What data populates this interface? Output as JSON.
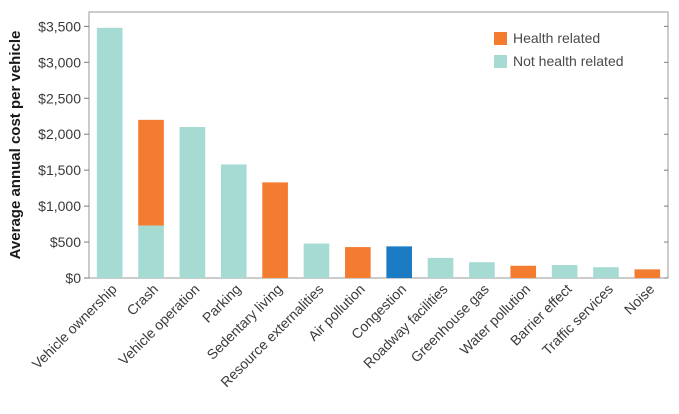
{
  "chart_data": {
    "type": "bar",
    "stacked": true,
    "ylabel": "Average annual cost per vehicle",
    "xlabel": "",
    "title": "",
    "ylim": [
      0,
      3700
    ],
    "yticks": [
      0,
      500,
      1000,
      1500,
      2000,
      2500,
      3000,
      3500
    ],
    "ytick_labels": [
      "$0",
      "$500",
      "$1,000",
      "$1,500",
      "$2,000",
      "$2,500",
      "$3,000",
      "$3,500"
    ],
    "grid": false,
    "legend_position": "top-right",
    "categories": [
      "Vehicle ownership",
      "Crash",
      "Vehicle operation",
      "Parking",
      "Sedentary living",
      "Resource externalities",
      "Air pollution",
      "Congestion",
      "Roadway facilities",
      "Greenhouse gas",
      "Water pollution",
      "Barrier effect",
      "Traffic services",
      "Noise"
    ],
    "series": [
      {
        "name": "Not health related",
        "color": "#a6dbd3",
        "values": [
          3480,
          730,
          2100,
          1580,
          0,
          480,
          0,
          0,
          280,
          220,
          0,
          180,
          150,
          0
        ]
      },
      {
        "name": "Health related",
        "color": "#f47c30",
        "values": [
          0,
          1470,
          0,
          0,
          1330,
          0,
          430,
          0,
          0,
          0,
          170,
          0,
          0,
          120
        ]
      }
    ],
    "highlight": {
      "category": "Congestion",
      "value": 440,
      "color": "#1b7cc4"
    },
    "legend": [
      {
        "label": "Health related",
        "color": "#f47c30"
      },
      {
        "label": "Not health related",
        "color": "#a6dbd3"
      }
    ]
  }
}
